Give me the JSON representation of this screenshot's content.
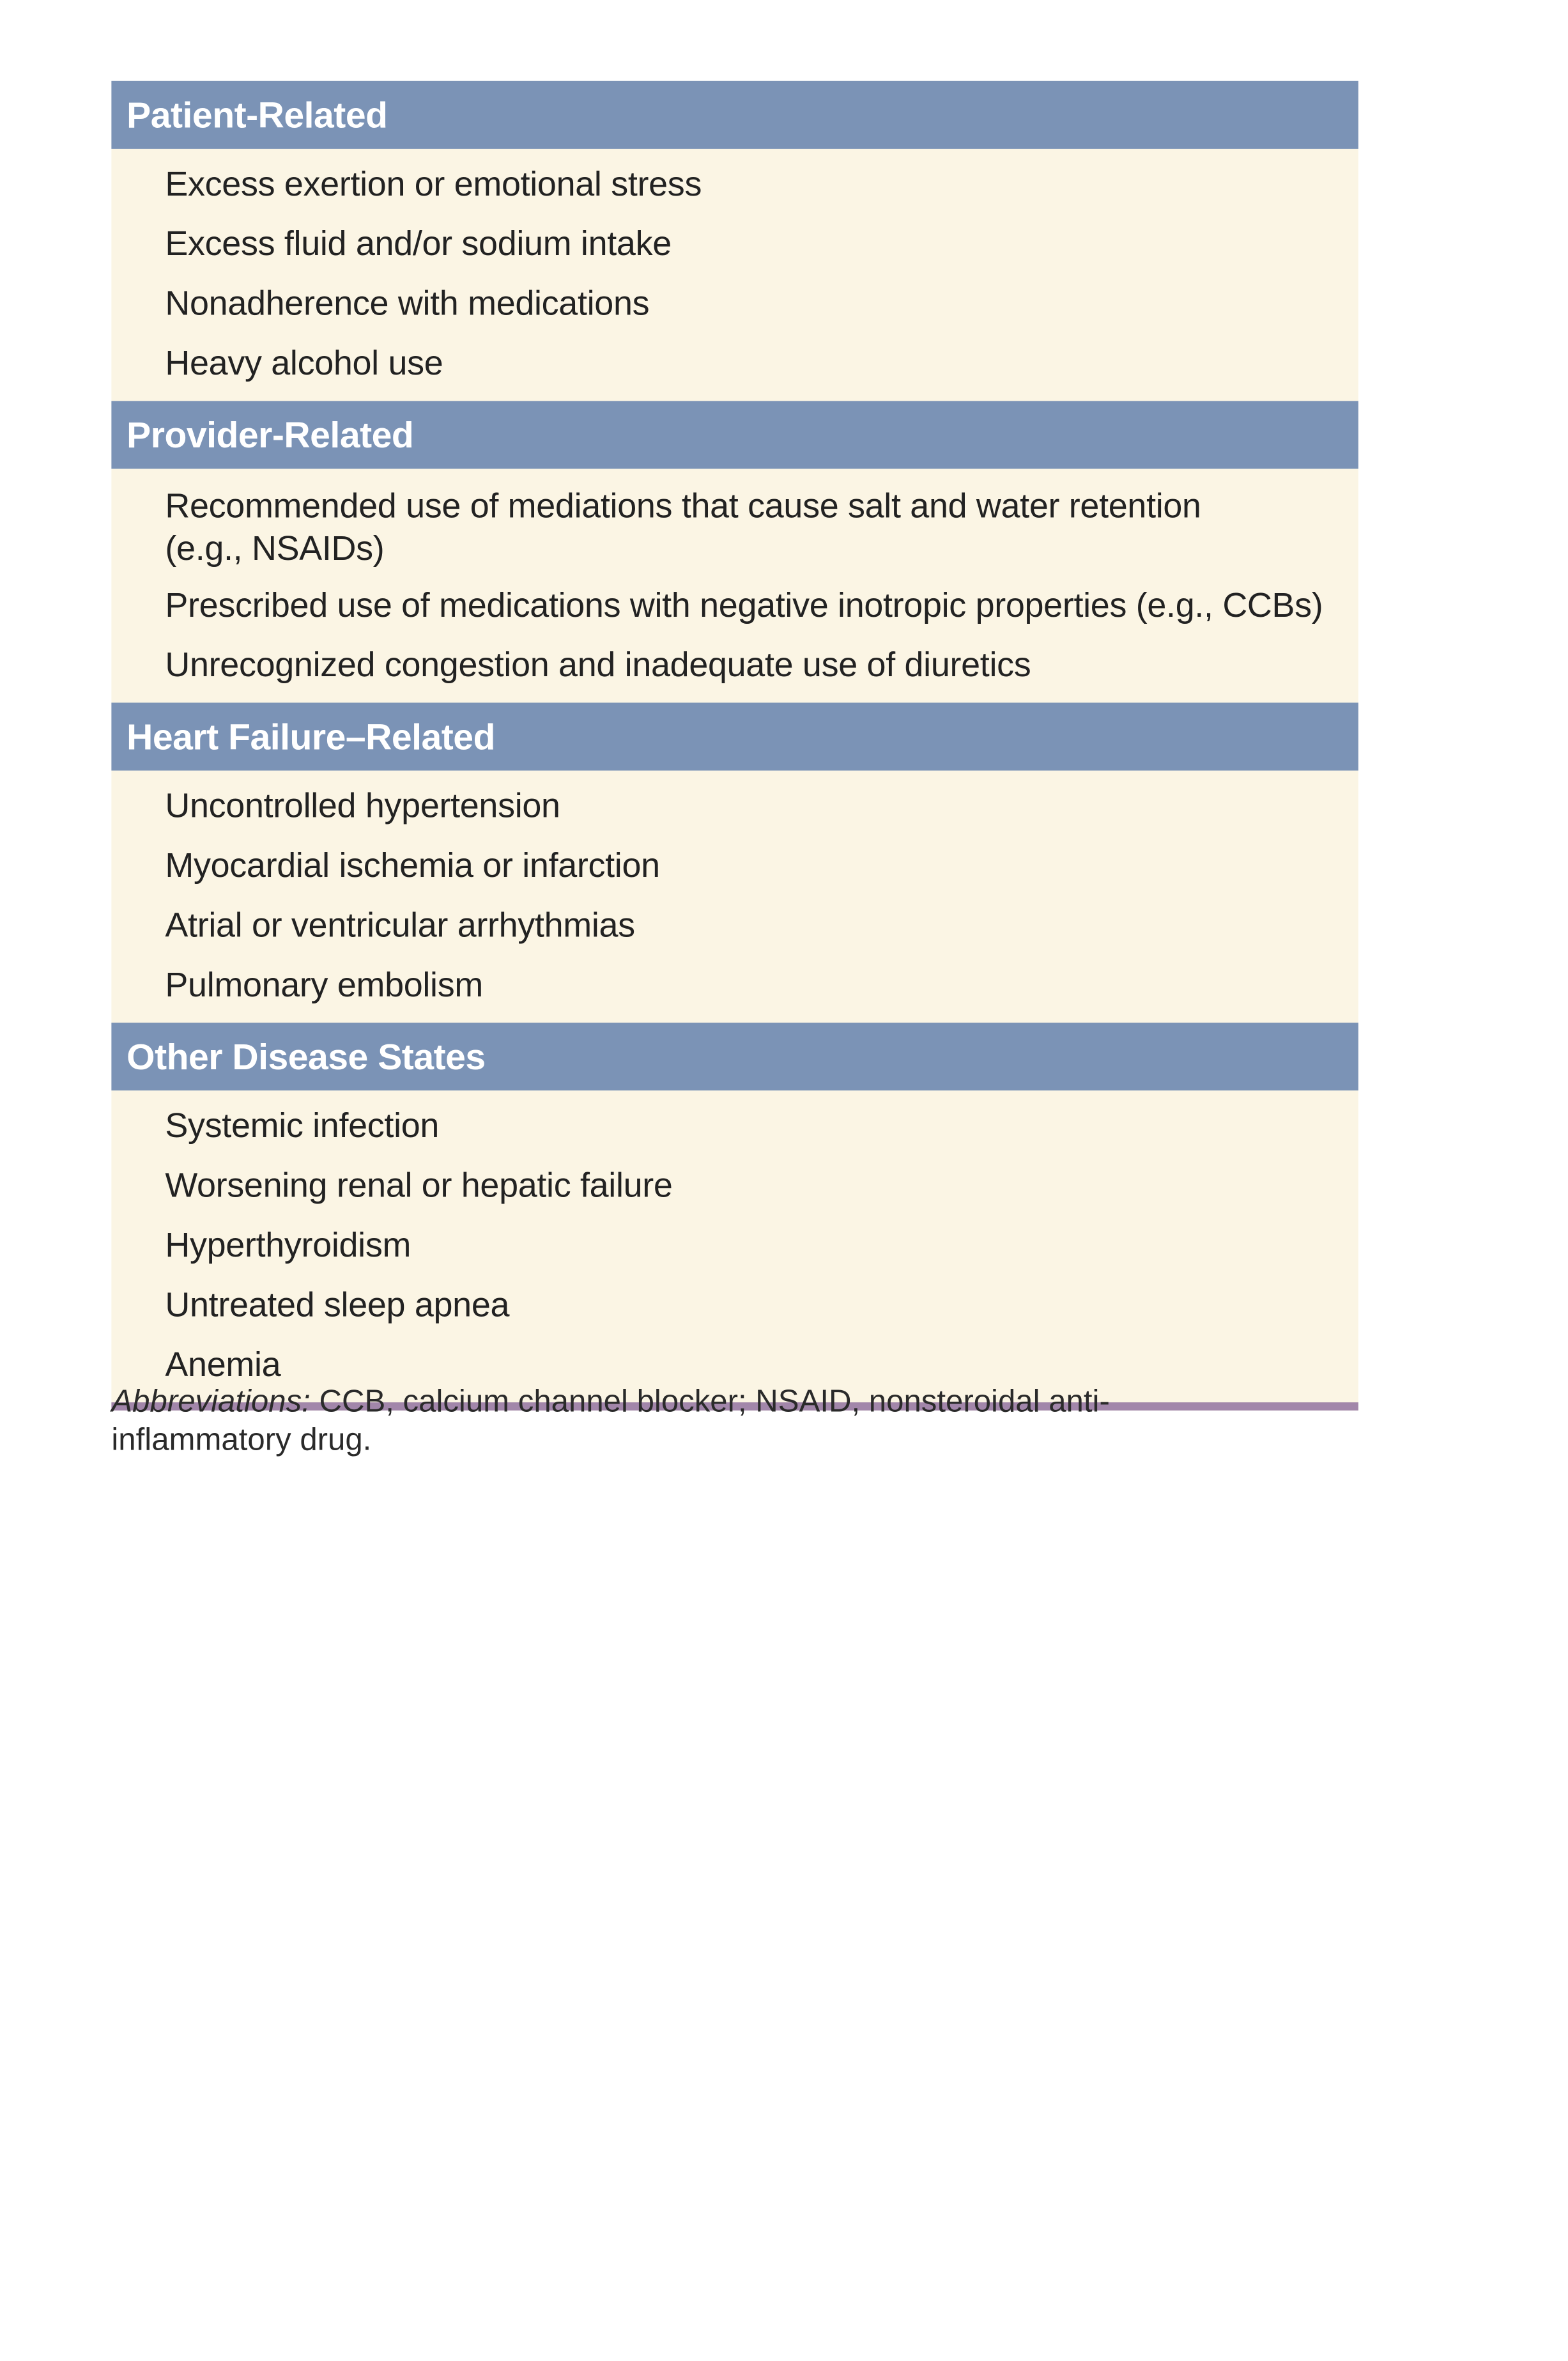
{
  "sections": [
    {
      "title": "Patient-Related",
      "items": [
        "Excess exertion or emotional stress",
        "Excess fluid and/or sodium intake",
        "Nonadherence with medications",
        "Heavy alcohol use"
      ]
    },
    {
      "title": "Provider-Related",
      "items": [
        "Recommended use of mediations that cause salt and water retention (e.g., NSAIDs)",
        "Prescribed use of medications with negative inotropic properties (e.g., CCBs)",
        "Unrecognized congestion and inadequate use of diuretics"
      ]
    },
    {
      "title": "Heart Failure–Related",
      "items": [
        "Uncontrolled hypertension",
        "Myocardial ischemia or infarction",
        "Atrial or ventricular arrhythmias",
        "Pulmonary embolism"
      ]
    },
    {
      "title": "Other Disease States",
      "items": [
        "Systemic infection",
        "Worsening renal or hepatic failure",
        "Hyperthyroidism",
        "Untreated sleep apnea",
        "Anemia"
      ]
    }
  ],
  "footnote": {
    "label": "Abbreviations:",
    "text": " CCB, calcium channel blocker; NSAID, nonsteroidal anti-inflammatory drug."
  },
  "colors": {
    "header_bg": "#7b93b6",
    "body_bg": "#fbf5e4",
    "bottom_rule": "#a286aa"
  }
}
